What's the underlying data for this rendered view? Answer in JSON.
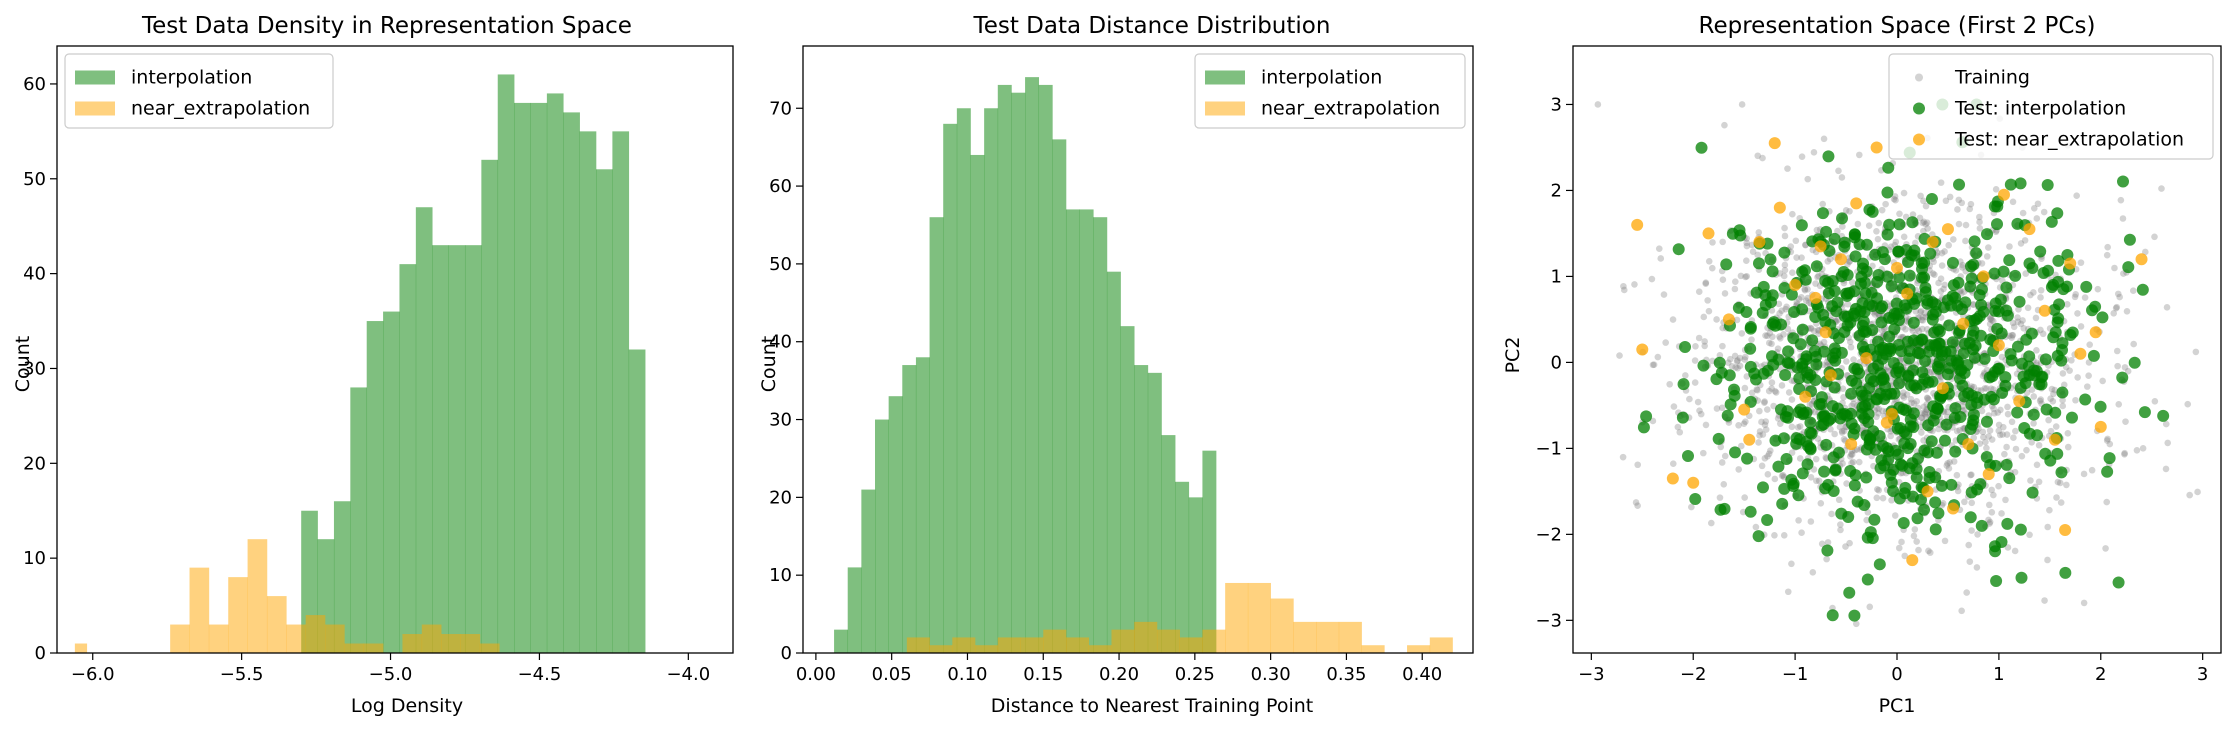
{
  "chart_data": [
    {
      "type": "histogram",
      "title": "Test Data Density in Representation Space",
      "xlabel": "Log Density",
      "ylabel": "Count",
      "xlim": [
        -6.12,
        -3.85
      ],
      "ylim": [
        0,
        64
      ],
      "xticks": [
        -6.0,
        -5.5,
        -5.0,
        -4.5,
        -4.0
      ],
      "xtick_labels": [
        "−6.0",
        "−5.5",
        "−5.0",
        "−4.5",
        "−4.0"
      ],
      "yticks": [
        0,
        10,
        20,
        30,
        40,
        50,
        60
      ],
      "ytick_labels": [
        "0",
        "10",
        "20",
        "30",
        "40",
        "50",
        "60"
      ],
      "legend_position": "upper-left",
      "series": [
        {
          "name": "interpolation",
          "color": "#008000",
          "bins": [
            [
              -5.3,
              -5.245,
              15
            ],
            [
              -5.245,
              -5.19,
              12
            ],
            [
              -5.19,
              -5.135,
              16
            ],
            [
              -5.135,
              -5.08,
              28
            ],
            [
              -5.08,
              -5.025,
              35
            ],
            [
              -5.025,
              -4.97,
              36
            ],
            [
              -4.97,
              -4.915,
              41
            ],
            [
              -4.915,
              -4.86,
              47
            ],
            [
              -4.86,
              -4.805,
              43
            ],
            [
              -4.805,
              -4.75,
              43
            ],
            [
              -4.75,
              -4.695,
              43
            ],
            [
              -4.695,
              -4.64,
              52
            ],
            [
              -4.64,
              -4.585,
              61
            ],
            [
              -4.585,
              -4.53,
              58
            ],
            [
              -4.53,
              -4.475,
              58
            ],
            [
              -4.475,
              -4.42,
              59
            ],
            [
              -4.42,
              -4.365,
              57
            ],
            [
              -4.365,
              -4.31,
              55
            ],
            [
              -4.31,
              -4.255,
              51
            ],
            [
              -4.255,
              -4.2,
              55
            ],
            [
              -4.2,
              -4.145,
              32
            ]
          ]
        },
        {
          "name": "near_extrapolation",
          "color": "#FFA500",
          "bins": [
            [
              -6.06,
              -6.02,
              1
            ],
            [
              -5.74,
              -5.675,
              3
            ],
            [
              -5.675,
              -5.61,
              9
            ],
            [
              -5.61,
              -5.545,
              3
            ],
            [
              -5.545,
              -5.48,
              8
            ],
            [
              -5.48,
              -5.415,
              12
            ],
            [
              -5.415,
              -5.35,
              6
            ],
            [
              -5.35,
              -5.285,
              3
            ],
            [
              -5.285,
              -5.22,
              4
            ],
            [
              -5.22,
              -5.155,
              3
            ],
            [
              -5.155,
              -5.09,
              1
            ],
            [
              -5.09,
              -5.025,
              1
            ],
            [
              -5.025,
              -4.96,
              0
            ],
            [
              -4.96,
              -4.895,
              2
            ],
            [
              -4.895,
              -4.83,
              3
            ],
            [
              -4.83,
              -4.765,
              2
            ],
            [
              -4.765,
              -4.7,
              2
            ],
            [
              -4.7,
              -4.635,
              1
            ]
          ]
        }
      ]
    },
    {
      "type": "histogram",
      "title": "Test Data Distance Distribution",
      "xlabel": "Distance to Nearest Training Point",
      "ylabel": "Count",
      "xlim": [
        -0.0085,
        0.4335
      ],
      "ylim": [
        0,
        78
      ],
      "xticks": [
        0.0,
        0.05,
        0.1,
        0.15,
        0.2,
        0.25,
        0.3,
        0.35,
        0.4
      ],
      "xtick_labels": [
        "0.00",
        "0.05",
        "0.10",
        "0.15",
        "0.20",
        "0.25",
        "0.30",
        "0.35",
        "0.40"
      ],
      "yticks": [
        0,
        10,
        20,
        30,
        40,
        50,
        60,
        70
      ],
      "ytick_labels": [
        "0",
        "10",
        "20",
        "30",
        "40",
        "50",
        "60",
        "70"
      ],
      "legend_position": "upper-right",
      "series": [
        {
          "name": "interpolation",
          "color": "#008000",
          "bins": [
            [
              0.012,
              0.021,
              3
            ],
            [
              0.021,
              0.03,
              11
            ],
            [
              0.03,
              0.039,
              21
            ],
            [
              0.039,
              0.048,
              30
            ],
            [
              0.048,
              0.057,
              33
            ],
            [
              0.057,
              0.066,
              37
            ],
            [
              0.066,
              0.075,
              38
            ],
            [
              0.075,
              0.084,
              56
            ],
            [
              0.084,
              0.093,
              68
            ],
            [
              0.093,
              0.102,
              70
            ],
            [
              0.102,
              0.111,
              64
            ],
            [
              0.111,
              0.12,
              70
            ],
            [
              0.12,
              0.129,
              73
            ],
            [
              0.129,
              0.138,
              72
            ],
            [
              0.138,
              0.147,
              74
            ],
            [
              0.147,
              0.156,
              73
            ],
            [
              0.156,
              0.165,
              66
            ],
            [
              0.165,
              0.174,
              57
            ],
            [
              0.174,
              0.183,
              57
            ],
            [
              0.183,
              0.192,
              56
            ],
            [
              0.192,
              0.201,
              49
            ],
            [
              0.201,
              0.21,
              42
            ],
            [
              0.21,
              0.219,
              37
            ],
            [
              0.219,
              0.228,
              36
            ],
            [
              0.228,
              0.237,
              28
            ],
            [
              0.237,
              0.246,
              22
            ],
            [
              0.246,
              0.255,
              20
            ],
            [
              0.255,
              0.264,
              26
            ]
          ]
        },
        {
          "name": "near_extrapolation",
          "color": "#FFA500",
          "bins": [
            [
              0.06,
              0.075,
              2
            ],
            [
              0.075,
              0.09,
              1
            ],
            [
              0.09,
              0.105,
              2
            ],
            [
              0.105,
              0.12,
              1
            ],
            [
              0.12,
              0.135,
              2
            ],
            [
              0.135,
              0.15,
              2
            ],
            [
              0.15,
              0.165,
              3
            ],
            [
              0.165,
              0.18,
              2
            ],
            [
              0.18,
              0.195,
              1
            ],
            [
              0.195,
              0.21,
              3
            ],
            [
              0.21,
              0.225,
              4
            ],
            [
              0.225,
              0.24,
              3
            ],
            [
              0.24,
              0.255,
              2
            ],
            [
              0.255,
              0.27,
              3
            ],
            [
              0.27,
              0.285,
              9
            ],
            [
              0.285,
              0.3,
              9
            ],
            [
              0.3,
              0.315,
              7
            ],
            [
              0.315,
              0.33,
              4
            ],
            [
              0.33,
              0.345,
              4
            ],
            [
              0.345,
              0.36,
              4
            ],
            [
              0.36,
              0.375,
              1
            ],
            [
              0.375,
              0.39,
              0
            ],
            [
              0.39,
              0.405,
              1
            ],
            [
              0.405,
              0.42,
              2
            ]
          ]
        }
      ]
    },
    {
      "type": "scatter",
      "title": "Representation Space (First 2 PCs)",
      "xlabel": "PC1",
      "ylabel": "PC2",
      "xlim": [
        -3.18,
        3.18
      ],
      "ylim": [
        -3.38,
        3.68
      ],
      "xticks": [
        -3,
        -2,
        -1,
        0,
        1,
        2,
        3
      ],
      "xtick_labels": [
        "−3",
        "−2",
        "−1",
        "0",
        "1",
        "2",
        "3"
      ],
      "yticks": [
        -3,
        -2,
        -1,
        0,
        1,
        2,
        3
      ],
      "ytick_labels": [
        "−3",
        "−2",
        "−1",
        "0",
        "1",
        "2",
        "3"
      ],
      "legend_position": "upper-right",
      "series": [
        {
          "name": "Training",
          "color": "#808080",
          "points_generated": true,
          "count": 1800,
          "spread": [
            0.95,
            0.95
          ],
          "seed": 11
        },
        {
          "name": "Test: interpolation",
          "color": "#008000",
          "points_generated": true,
          "count": 700,
          "spread": [
            0.92,
            0.98
          ],
          "seed": 29
        },
        {
          "name": "Test: near_extrapolation",
          "color": "#FFA500",
          "points": [
            [
              -2.55,
              1.6
            ],
            [
              -2.5,
              0.15
            ],
            [
              -2.2,
              -1.35
            ],
            [
              -2.0,
              -1.4
            ],
            [
              -1.85,
              1.5
            ],
            [
              -1.65,
              0.5
            ],
            [
              -1.5,
              -0.55
            ],
            [
              -1.45,
              -0.9
            ],
            [
              -1.35,
              1.4
            ],
            [
              -1.2,
              2.55
            ],
            [
              -1.15,
              1.8
            ],
            [
              -1.0,
              0.9
            ],
            [
              -0.9,
              -0.4
            ],
            [
              -0.8,
              0.75
            ],
            [
              -0.75,
              1.35
            ],
            [
              -0.7,
              0.35
            ],
            [
              -0.55,
              1.2
            ],
            [
              -0.45,
              -0.95
            ],
            [
              -0.4,
              1.85
            ],
            [
              -0.3,
              0.05
            ],
            [
              -0.2,
              2.5
            ],
            [
              -0.1,
              -0.7
            ],
            [
              0.0,
              1.1
            ],
            [
              0.1,
              0.8
            ],
            [
              0.15,
              -2.3
            ],
            [
              -0.05,
              -0.6
            ],
            [
              0.3,
              -1.5
            ],
            [
              0.35,
              1.4
            ],
            [
              0.45,
              -0.3
            ],
            [
              0.5,
              1.55
            ],
            [
              0.55,
              -1.7
            ],
            [
              0.65,
              0.45
            ],
            [
              0.85,
              1.0
            ],
            [
              0.9,
              -1.3
            ],
            [
              1.0,
              0.2
            ],
            [
              1.05,
              1.95
            ],
            [
              1.2,
              -0.45
            ],
            [
              1.3,
              1.55
            ],
            [
              1.45,
              0.6
            ],
            [
              1.55,
              -0.9
            ],
            [
              1.65,
              -1.95
            ],
            [
              1.7,
              1.15
            ],
            [
              1.8,
              0.1
            ],
            [
              1.95,
              0.35
            ],
            [
              2.0,
              -0.75
            ],
            [
              2.4,
              1.2
            ],
            [
              -0.65,
              -0.15
            ],
            [
              0.7,
              -0.95
            ]
          ]
        }
      ]
    }
  ]
}
